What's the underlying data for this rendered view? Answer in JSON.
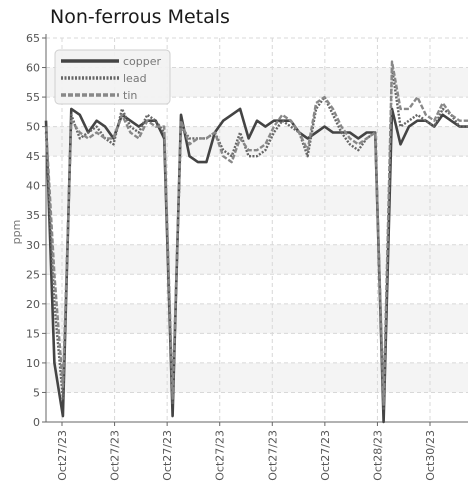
{
  "chart_data": {
    "type": "line",
    "title": "Non-ferrous Metals",
    "xlabel": "",
    "ylabel": "ppm",
    "ylim": [
      0,
      65
    ],
    "yticks": [
      0,
      5,
      10,
      15,
      20,
      25,
      30,
      35,
      40,
      45,
      50,
      55,
      60,
      65
    ],
    "xtick_labels": [
      "Oct27/23",
      "Oct27/23",
      "Oct27/23",
      "Oct27/23",
      "Oct27/23",
      "Oct27/23",
      "Oct28/23",
      "Oct30/23"
    ],
    "grid": true,
    "legend_position": "top-left",
    "x": [
      0,
      1,
      2,
      3,
      4,
      5,
      6,
      7,
      8,
      9,
      10,
      11,
      12,
      13,
      14,
      15,
      16,
      17,
      18,
      19,
      20,
      21,
      22,
      23,
      24,
      25,
      26,
      27,
      28,
      29,
      30,
      31,
      32,
      33,
      34,
      35,
      36,
      37,
      38,
      39,
      40,
      41,
      42,
      43,
      44,
      45,
      46,
      47,
      48,
      49,
      50
    ],
    "series": [
      {
        "name": "copper",
        "color": "#444444",
        "style": "solid",
        "values": [
          51,
          10,
          1,
          53,
          52,
          49,
          51,
          50,
          48,
          52,
          51,
          50,
          51,
          51,
          48,
          1,
          52,
          45,
          44,
          44,
          49,
          51,
          52,
          53,
          48,
          51,
          50,
          51,
          51,
          51,
          49,
          48,
          49,
          50,
          49,
          49,
          49,
          48,
          49,
          49,
          0,
          53,
          47,
          50,
          51,
          51,
          50,
          52,
          51,
          50,
          50
        ]
      },
      {
        "name": "lead",
        "color": "#666666",
        "style": "dotted",
        "values": [
          49,
          20,
          4,
          52,
          48,
          49,
          50,
          48,
          47,
          53,
          50,
          49,
          52,
          51,
          49,
          3,
          50,
          48,
          48,
          48,
          49,
          46,
          45,
          49,
          45,
          45,
          46,
          49,
          51,
          50,
          49,
          45,
          53,
          55,
          52,
          49,
          47,
          46,
          48,
          49,
          2,
          60,
          50,
          51,
          52,
          51,
          50,
          53,
          52,
          50,
          50
        ]
      },
      {
        "name": "tin",
        "color": "#888888",
        "style": "dashed",
        "values": [
          50,
          25,
          6,
          51,
          49,
          48,
          49,
          48,
          48,
          52,
          49,
          48,
          51,
          50,
          50,
          4,
          51,
          47,
          48,
          48,
          49,
          45,
          44,
          48,
          46,
          46,
          47,
          50,
          52,
          51,
          49,
          46,
          54,
          55,
          53,
          50,
          48,
          47,
          48,
          49,
          3,
          61,
          53,
          53,
          55,
          52,
          51,
          54,
          52,
          51,
          51
        ]
      }
    ]
  }
}
